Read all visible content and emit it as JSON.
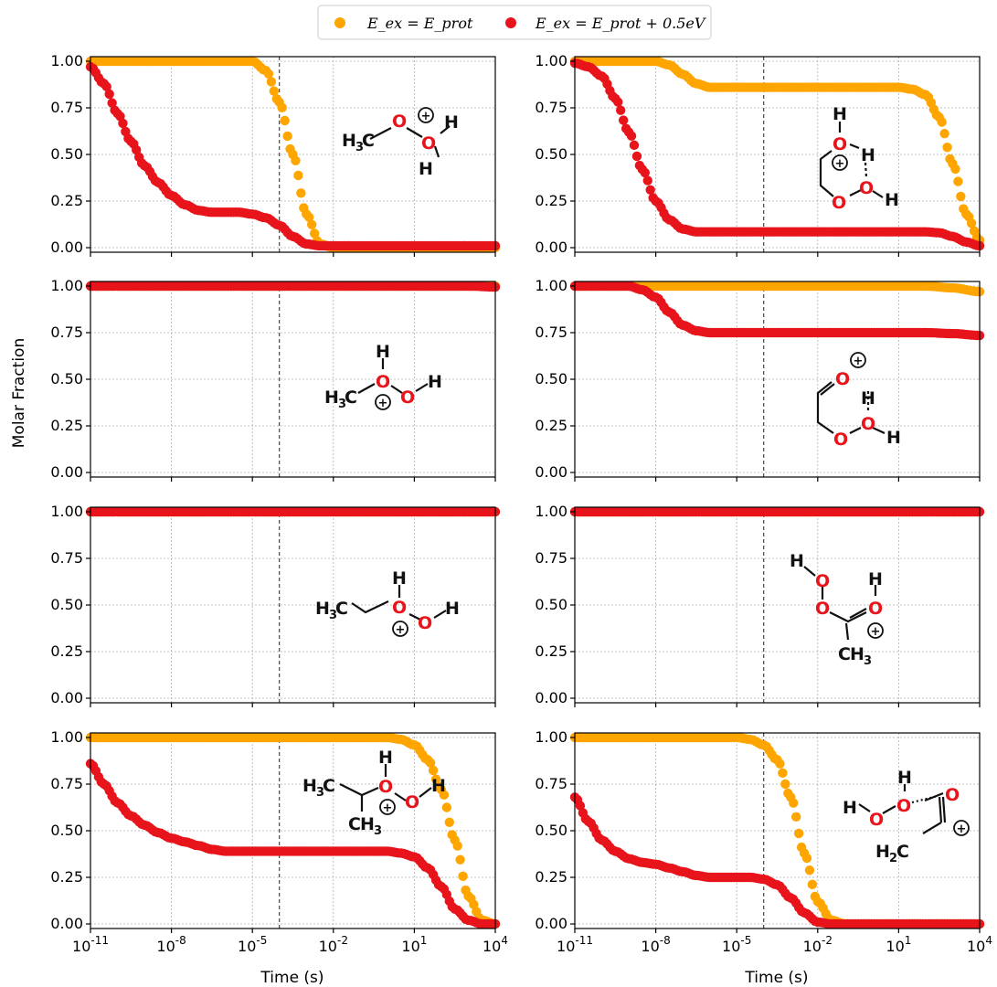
{
  "legend": {
    "items": [
      {
        "label": "E_ex = E_prot",
        "color": "#FFA500"
      },
      {
        "label": "E_ex = E_prot + 0.5eV",
        "color": "#E8141B"
      }
    ]
  },
  "ylabel": "Molar Fraction",
  "xlabel": "Time (s)",
  "chart_data": {
    "type": "scatter",
    "x_scale": "log",
    "xlim": [
      1e-11,
      10000.0
    ],
    "ylim": [
      0,
      1
    ],
    "x_ticks": [
      "10^-11",
      "10^-8",
      "10^-5",
      "10^-2",
      "10^1",
      "10^4"
    ],
    "y_ticks": [
      "0.00",
      "0.25",
      "0.50",
      "0.75",
      "1.00"
    ],
    "vline_x": 0.0001,
    "grid": true,
    "legend_position": "top-center",
    "series_names": [
      "E_ex = E_prot",
      "E_ex = E_prot + 0.5eV"
    ],
    "panels": [
      {
        "row": 0,
        "col": 0,
        "orange": [
          [
            -11,
            1.0
          ],
          [
            -5,
            1.0
          ],
          [
            -4.5,
            0.95
          ],
          [
            -4,
            0.78
          ],
          [
            -3.5,
            0.5
          ],
          [
            -3,
            0.18
          ],
          [
            -2.5,
            0.02
          ],
          [
            -2,
            0.0
          ],
          [
            4,
            0.0
          ]
        ],
        "red": [
          [
            -11,
            0.97
          ],
          [
            -10.5,
            0.88
          ],
          [
            -10,
            0.72
          ],
          [
            -9.5,
            0.57
          ],
          [
            -9,
            0.44
          ],
          [
            -8.5,
            0.35
          ],
          [
            -8,
            0.28
          ],
          [
            -7.5,
            0.23
          ],
          [
            -7,
            0.2
          ],
          [
            -6.5,
            0.19
          ],
          [
            -5.5,
            0.19
          ],
          [
            -5,
            0.18
          ],
          [
            -4.5,
            0.16
          ],
          [
            -4,
            0.12
          ],
          [
            -3.5,
            0.06
          ],
          [
            -3,
            0.02
          ],
          [
            -2.5,
            0.01
          ],
          [
            4,
            0.01
          ]
        ]
      },
      {
        "row": 0,
        "col": 1,
        "orange": [
          [
            -11,
            1.0
          ],
          [
            -8,
            1.0
          ],
          [
            -7.5,
            0.98
          ],
          [
            -7,
            0.93
          ],
          [
            -6.5,
            0.88
          ],
          [
            -6,
            0.86
          ],
          [
            1,
            0.86
          ],
          [
            1.5,
            0.85
          ],
          [
            2,
            0.82
          ],
          [
            2.5,
            0.7
          ],
          [
            3,
            0.45
          ],
          [
            3.5,
            0.18
          ],
          [
            4,
            0.04
          ]
        ],
        "red": [
          [
            -11,
            0.99
          ],
          [
            -10.5,
            0.97
          ],
          [
            -10,
            0.92
          ],
          [
            -9.5,
            0.8
          ],
          [
            -9,
            0.62
          ],
          [
            -8.5,
            0.42
          ],
          [
            -8,
            0.25
          ],
          [
            -7.5,
            0.15
          ],
          [
            -7,
            0.1
          ],
          [
            -6.5,
            0.085
          ],
          [
            2,
            0.085
          ],
          [
            2.5,
            0.08
          ],
          [
            3,
            0.06
          ],
          [
            3.5,
            0.03
          ],
          [
            4,
            0.01
          ]
        ]
      },
      {
        "row": 1,
        "col": 0,
        "orange": [
          [
            -11,
            1.0
          ],
          [
            4,
            1.0
          ]
        ],
        "red": [
          [
            -11,
            1.0
          ],
          [
            3,
            1.0
          ],
          [
            4,
            0.995
          ]
        ]
      },
      {
        "row": 1,
        "col": 1,
        "orange": [
          [
            -11,
            1.0
          ],
          [
            2,
            1.0
          ],
          [
            3,
            0.99
          ],
          [
            4,
            0.97
          ]
        ],
        "red": [
          [
            -11,
            1.0
          ],
          [
            -9,
            1.0
          ],
          [
            -8.5,
            0.98
          ],
          [
            -8,
            0.94
          ],
          [
            -7.5,
            0.86
          ],
          [
            -7,
            0.79
          ],
          [
            -6.5,
            0.76
          ],
          [
            -6,
            0.75
          ],
          [
            2,
            0.75
          ],
          [
            3,
            0.745
          ],
          [
            4,
            0.735
          ]
        ]
      },
      {
        "row": 2,
        "col": 0,
        "orange": [
          [
            -11,
            1.0
          ],
          [
            4,
            1.0
          ]
        ],
        "red": [
          [
            -11,
            1.0
          ],
          [
            4,
            1.0
          ]
        ]
      },
      {
        "row": 2,
        "col": 1,
        "orange": [
          [
            -11,
            1.0
          ],
          [
            4,
            1.0
          ]
        ],
        "red": [
          [
            -11,
            1.0
          ],
          [
            4,
            1.0
          ]
        ]
      },
      {
        "row": 3,
        "col": 0,
        "orange": [
          [
            -11,
            1.0
          ],
          [
            0,
            1.0
          ],
          [
            0.5,
            0.99
          ],
          [
            1,
            0.96
          ],
          [
            1.5,
            0.88
          ],
          [
            2,
            0.72
          ],
          [
            2.5,
            0.45
          ],
          [
            3,
            0.15
          ],
          [
            3.5,
            0.02
          ],
          [
            4,
            0.0
          ]
        ],
        "red": [
          [
            -11,
            0.86
          ],
          [
            -10.5,
            0.75
          ],
          [
            -10,
            0.65
          ],
          [
            -9.5,
            0.58
          ],
          [
            -9,
            0.53
          ],
          [
            -8.5,
            0.49
          ],
          [
            -8,
            0.46
          ],
          [
            -7.5,
            0.44
          ],
          [
            -7,
            0.42
          ],
          [
            -6.5,
            0.4
          ],
          [
            -6,
            0.39
          ],
          [
            0,
            0.39
          ],
          [
            0.5,
            0.38
          ],
          [
            1,
            0.36
          ],
          [
            1.5,
            0.3
          ],
          [
            2,
            0.2
          ],
          [
            2.5,
            0.08
          ],
          [
            3,
            0.02
          ],
          [
            3.5,
            0.0
          ],
          [
            4,
            0.0
          ]
        ]
      },
      {
        "row": 3,
        "col": 1,
        "orange": [
          [
            -11,
            1.0
          ],
          [
            -5,
            1.0
          ],
          [
            -4.5,
            0.99
          ],
          [
            -4,
            0.96
          ],
          [
            -3.5,
            0.88
          ],
          [
            -3,
            0.68
          ],
          [
            -2.5,
            0.38
          ],
          [
            -2,
            0.12
          ],
          [
            -1.5,
            0.02
          ],
          [
            -1,
            0.0
          ],
          [
            4,
            0.0
          ]
        ],
        "red": [
          [
            -11,
            0.68
          ],
          [
            -10.5,
            0.55
          ],
          [
            -10,
            0.45
          ],
          [
            -9.5,
            0.39
          ],
          [
            -9,
            0.35
          ],
          [
            -8.5,
            0.33
          ],
          [
            -8,
            0.32
          ],
          [
            -7.5,
            0.3
          ],
          [
            -7,
            0.28
          ],
          [
            -6.5,
            0.26
          ],
          [
            -6,
            0.25
          ],
          [
            -4.5,
            0.25
          ],
          [
            -4,
            0.24
          ],
          [
            -3.5,
            0.21
          ],
          [
            -3,
            0.14
          ],
          [
            -2.5,
            0.06
          ],
          [
            -2,
            0.01
          ],
          [
            -1.5,
            0.0
          ],
          [
            4,
            0.0
          ]
        ]
      }
    ]
  },
  "molecules": {
    "p00": {
      "H3": "H",
      "sub3": "3",
      "C": "C",
      "O": "O",
      "H": "H",
      "plus": "+"
    },
    "p01": {
      "O": "O",
      "H": "H",
      "plus": "+"
    },
    "p10": {
      "H3": "H",
      "sub3": "3",
      "C": "C",
      "O": "O",
      "H": "H",
      "plus": "+"
    },
    "p11": {
      "O": "O",
      "H": "H",
      "plus": "+"
    },
    "p20": {
      "H3": "H",
      "sub3": "3",
      "C": "C",
      "O": "O",
      "H": "H",
      "plus": "+"
    },
    "p21": {
      "O": "O",
      "H": "H",
      "C": "C",
      "sub3": "3",
      "plus": "+"
    },
    "p30": {
      "H3": "H",
      "sub3": "3",
      "C": "C",
      "O": "O",
      "H": "H",
      "plus": "+"
    },
    "p31": {
      "O": "O",
      "H": "H",
      "H2": "H",
      "sub2": "2",
      "C": "C",
      "plus": "+"
    }
  }
}
